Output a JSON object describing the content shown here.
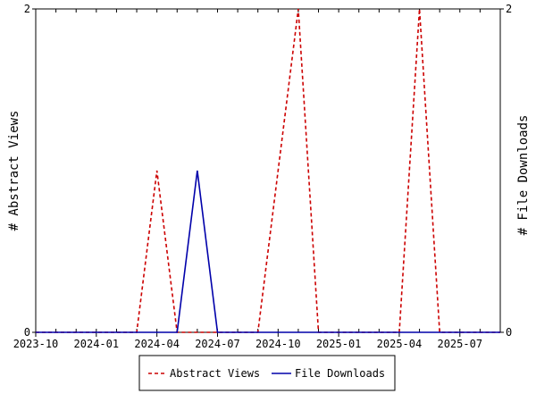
{
  "chart_data": {
    "type": "line",
    "x_ticks": [
      "2023-10",
      "2024-01",
      "2024-04",
      "2024-07",
      "2024-10",
      "2025-01",
      "2025-04",
      "2025-07"
    ],
    "x_range": [
      "2023-10",
      "2025-09"
    ],
    "y_left": {
      "label": "# Abstract Views",
      "ticks": [
        "0",
        "2"
      ],
      "range": [
        0,
        2
      ]
    },
    "y_right": {
      "label": "# File Downloads",
      "ticks": [
        "0",
        "2"
      ],
      "range": [
        0,
        2
      ]
    },
    "grid": false,
    "legend_position": "bottom",
    "series": [
      {
        "name": "Abstract Views",
        "color": "#cc0000",
        "style": "dashed",
        "axis": "left",
        "points": [
          [
            "2023-10",
            0
          ],
          [
            "2023-11",
            0
          ],
          [
            "2023-12",
            0
          ],
          [
            "2024-01",
            0
          ],
          [
            "2024-02",
            0
          ],
          [
            "2024-03",
            0
          ],
          [
            "2024-04",
            1
          ],
          [
            "2024-05",
            0
          ],
          [
            "2024-06",
            0
          ],
          [
            "2024-07",
            0
          ],
          [
            "2024-08",
            0
          ],
          [
            "2024-09",
            0
          ],
          [
            "2024-10",
            1
          ],
          [
            "2024-11",
            2
          ],
          [
            "2024-12",
            0
          ],
          [
            "2025-01",
            0
          ],
          [
            "2025-02",
            0
          ],
          [
            "2025-03",
            0
          ],
          [
            "2025-04",
            0
          ],
          [
            "2025-05",
            2
          ],
          [
            "2025-06",
            0
          ],
          [
            "2025-07",
            0
          ],
          [
            "2025-08",
            0
          ],
          [
            "2025-09",
            0
          ]
        ]
      },
      {
        "name": "File Downloads",
        "color": "#0000aa",
        "style": "solid",
        "axis": "right",
        "points": [
          [
            "2023-10",
            0
          ],
          [
            "2023-11",
            0
          ],
          [
            "2023-12",
            0
          ],
          [
            "2024-01",
            0
          ],
          [
            "2024-02",
            0
          ],
          [
            "2024-03",
            0
          ],
          [
            "2024-04",
            0
          ],
          [
            "2024-05",
            0
          ],
          [
            "2024-06",
            1
          ],
          [
            "2024-07",
            0
          ],
          [
            "2024-08",
            0
          ],
          [
            "2024-09",
            0
          ],
          [
            "2024-10",
            0
          ],
          [
            "2024-11",
            0
          ],
          [
            "2024-12",
            0
          ],
          [
            "2025-01",
            0
          ],
          [
            "2025-02",
            0
          ],
          [
            "2025-03",
            0
          ],
          [
            "2025-04",
            0
          ],
          [
            "2025-05",
            0
          ],
          [
            "2025-06",
            0
          ],
          [
            "2025-07",
            0
          ],
          [
            "2025-08",
            0
          ],
          [
            "2025-09",
            0
          ]
        ]
      }
    ]
  }
}
